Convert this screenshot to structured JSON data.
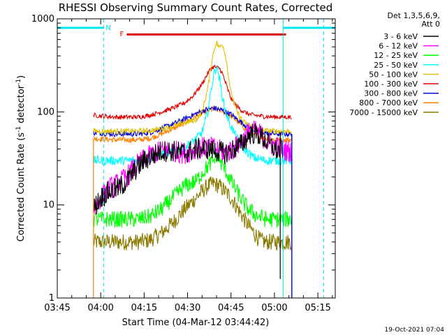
{
  "chart_data": {
    "type": "line",
    "title": "RHESSI Observing Summary Count Rates, Corrected",
    "xlabel": "Start Time (04-Mar-12 03:44:42)",
    "ylabel": "Corrected Count Rate (s⁻¹ detector⁻¹)",
    "ylabel_parts": {
      "base": "Corrected Count Rate (s",
      "sup1": "-1",
      "mid": " detector",
      "sup2": "-1",
      "end": ")"
    },
    "yscale": "log",
    "ylim": [
      1,
      1000
    ],
    "xlim_minutes": [
      0,
      96
    ],
    "x_ticks": [
      {
        "m": 0,
        "label": "03:45"
      },
      {
        "m": 15,
        "label": "04:00"
      },
      {
        "m": 30,
        "label": "04:15"
      },
      {
        "m": 45,
        "label": "04:30"
      },
      {
        "m": 60,
        "label": "04:45"
      },
      {
        "m": 75,
        "label": "05:00"
      },
      {
        "m": 90,
        "label": "05:15"
      }
    ],
    "y_ticks": [
      {
        "v": 1,
        "label": "1"
      },
      {
        "v": 10,
        "label": "10"
      },
      {
        "v": 100,
        "label": "100"
      },
      {
        "v": 1000,
        "label": "1000"
      }
    ],
    "legend_header": [
      "Det 1,3,5,6,9,",
      "Att 0"
    ],
    "series": [
      {
        "name": "3 - 6 keV",
        "color": "#000000",
        "points": [
          [
            12.5,
            9
          ],
          [
            15,
            12
          ],
          [
            18,
            14
          ],
          [
            21,
            15
          ],
          [
            24,
            18
          ],
          [
            27,
            24
          ],
          [
            30,
            30
          ],
          [
            33,
            34
          ],
          [
            36,
            38
          ],
          [
            40,
            38
          ],
          [
            44,
            36
          ],
          [
            48,
            40
          ],
          [
            52,
            40
          ],
          [
            55,
            38
          ],
          [
            58,
            36
          ],
          [
            61,
            40
          ],
          [
            64,
            46
          ],
          [
            67,
            60
          ],
          [
            70,
            56
          ],
          [
            73,
            45
          ],
          [
            76,
            38
          ],
          [
            78,
            40
          ]
        ]
      },
      {
        "name": "6 - 12 keV",
        "color": "#ff00ff",
        "points": [
          [
            12.5,
            9
          ],
          [
            15,
            12
          ],
          [
            18,
            15
          ],
          [
            21,
            17
          ],
          [
            24,
            20
          ],
          [
            27,
            26
          ],
          [
            30,
            31
          ],
          [
            33,
            35
          ],
          [
            36,
            38
          ],
          [
            40,
            38
          ],
          [
            44,
            36
          ],
          [
            48,
            40
          ],
          [
            52,
            42
          ],
          [
            55,
            40
          ],
          [
            58,
            36
          ],
          [
            61,
            40
          ],
          [
            64,
            50
          ],
          [
            67,
            64
          ],
          [
            70,
            58
          ],
          [
            73,
            46
          ],
          [
            76,
            42
          ],
          [
            79,
            38
          ],
          [
            81,
            38
          ]
        ]
      },
      {
        "name": "12 - 25 keV",
        "color": "#00ff00",
        "points": [
          [
            12.5,
            7
          ],
          [
            20,
            7
          ],
          [
            28,
            7
          ],
          [
            32,
            7.5
          ],
          [
            36,
            9
          ],
          [
            40,
            12
          ],
          [
            44,
            16
          ],
          [
            48,
            18
          ],
          [
            50,
            22
          ],
          [
            52,
            26
          ],
          [
            54,
            30
          ],
          [
            55,
            35
          ],
          [
            56,
            30
          ],
          [
            58,
            24
          ],
          [
            60,
            18
          ],
          [
            62,
            14
          ],
          [
            64,
            11
          ],
          [
            66,
            9
          ],
          [
            68,
            8
          ],
          [
            72,
            7
          ],
          [
            76,
            7
          ],
          [
            81,
            7
          ]
        ]
      },
      {
        "name": "25 - 50 keV",
        "color": "#00ffff",
        "points": [
          [
            12.5,
            30
          ],
          [
            20,
            30
          ],
          [
            28,
            30
          ],
          [
            32,
            32
          ],
          [
            36,
            35
          ],
          [
            40,
            38
          ],
          [
            44,
            42
          ],
          [
            47,
            48
          ],
          [
            50,
            60
          ],
          [
            52,
            100
          ],
          [
            53,
            160
          ],
          [
            54,
            250
          ],
          [
            55,
            310
          ],
          [
            56,
            230
          ],
          [
            57,
            150
          ],
          [
            58,
            100
          ],
          [
            60,
            70
          ],
          [
            62,
            52
          ],
          [
            64,
            42
          ],
          [
            66,
            36
          ],
          [
            68,
            32
          ],
          [
            72,
            30
          ],
          [
            76,
            30
          ],
          [
            81,
            30
          ]
        ]
      },
      {
        "name": "50 - 100 keV",
        "color": "#e0c000",
        "points": [
          [
            12.5,
            62
          ],
          [
            20,
            62
          ],
          [
            28,
            62
          ],
          [
            32,
            63
          ],
          [
            36,
            66
          ],
          [
            40,
            70
          ],
          [
            44,
            76
          ],
          [
            48,
            82
          ],
          [
            50,
            100
          ],
          [
            52,
            180
          ],
          [
            53,
            300
          ],
          [
            54,
            450
          ],
          [
            55,
            560
          ],
          [
            56,
            490
          ],
          [
            57,
            540
          ],
          [
            58,
            420
          ],
          [
            59,
            260
          ],
          [
            60,
            160
          ],
          [
            62,
            100
          ],
          [
            64,
            80
          ],
          [
            66,
            72
          ],
          [
            68,
            66
          ],
          [
            72,
            63
          ],
          [
            76,
            62
          ],
          [
            81,
            62
          ]
        ]
      },
      {
        "name": "100 - 300 keV",
        "color": "#e00000",
        "points": [
          [
            12.5,
            92
          ],
          [
            20,
            88
          ],
          [
            28,
            88
          ],
          [
            32,
            92
          ],
          [
            36,
            100
          ],
          [
            40,
            110
          ],
          [
            44,
            125
          ],
          [
            47,
            150
          ],
          [
            50,
            200
          ],
          [
            52,
            260
          ],
          [
            53,
            290
          ],
          [
            54,
            305
          ],
          [
            55,
            300
          ],
          [
            56,
            295
          ],
          [
            57,
            260
          ],
          [
            58,
            210
          ],
          [
            59,
            170
          ],
          [
            60,
            140
          ],
          [
            62,
            115
          ],
          [
            64,
            102
          ],
          [
            66,
            95
          ],
          [
            68,
            92
          ],
          [
            72,
            89
          ],
          [
            76,
            88
          ],
          [
            81,
            88
          ]
        ]
      },
      {
        "name": "300 - 800 keV",
        "color": "#0000dd",
        "points": [
          [
            12.5,
            60
          ],
          [
            20,
            58
          ],
          [
            28,
            58
          ],
          [
            32,
            60
          ],
          [
            36,
            66
          ],
          [
            40,
            74
          ],
          [
            44,
            84
          ],
          [
            48,
            96
          ],
          [
            51,
            105
          ],
          [
            54,
            110
          ],
          [
            57,
            104
          ],
          [
            60,
            94
          ],
          [
            62,
            84
          ],
          [
            64,
            76
          ],
          [
            66,
            68
          ],
          [
            68,
            64
          ],
          [
            72,
            60
          ],
          [
            76,
            58
          ],
          [
            81,
            58
          ]
        ]
      },
      {
        "name": "800 - 7000 keV",
        "color": "#ff8000",
        "points": [
          [
            12.5,
            52
          ],
          [
            20,
            50
          ],
          [
            28,
            50
          ],
          [
            32,
            52
          ],
          [
            36,
            58
          ],
          [
            40,
            66
          ],
          [
            44,
            76
          ],
          [
            48,
            90
          ],
          [
            51,
            100
          ],
          [
            54,
            108
          ],
          [
            57,
            102
          ],
          [
            60,
            90
          ],
          [
            62,
            80
          ],
          [
            64,
            70
          ],
          [
            66,
            62
          ],
          [
            68,
            56
          ],
          [
            72,
            52
          ],
          [
            76,
            50
          ],
          [
            81,
            50
          ]
        ]
      },
      {
        "name": "7000 - 15000 keV",
        "color": "#8b7a00",
        "points": [
          [
            12.5,
            4
          ],
          [
            20,
            4
          ],
          [
            28,
            4
          ],
          [
            32,
            4.2
          ],
          [
            36,
            5
          ],
          [
            40,
            6.5
          ],
          [
            44,
            9
          ],
          [
            48,
            12
          ],
          [
            50,
            14
          ],
          [
            52,
            16
          ],
          [
            54,
            17
          ],
          [
            56,
            16
          ],
          [
            58,
            14
          ],
          [
            60,
            12
          ],
          [
            62,
            9.5
          ],
          [
            64,
            7.5
          ],
          [
            66,
            6
          ],
          [
            68,
            5
          ],
          [
            70,
            4.2
          ],
          [
            72,
            4
          ],
          [
            76,
            4
          ],
          [
            81,
            4
          ]
        ]
      }
    ],
    "annotations": {
      "night_marker_label": "N",
      "flare_marker_label": "F",
      "night_color": "#00e5ee",
      "flare_color": "#dd0000",
      "night_intervals_minutes": [
        [
          0,
          16
        ],
        [
          78,
          96
        ]
      ],
      "flare_interval_minutes": [
        24,
        79
      ],
      "night_boundaries_minutes": [
        16,
        78
      ],
      "dashed_boundaries_minutes": [
        16,
        92
      ],
      "orange_drop_minute": 12.5,
      "black_drop_minute": 77,
      "blue_drop_minute": 81
    },
    "legend_placement": "right"
  },
  "footer": {
    "timestamp": "19-Oct-2021 07:04"
  }
}
